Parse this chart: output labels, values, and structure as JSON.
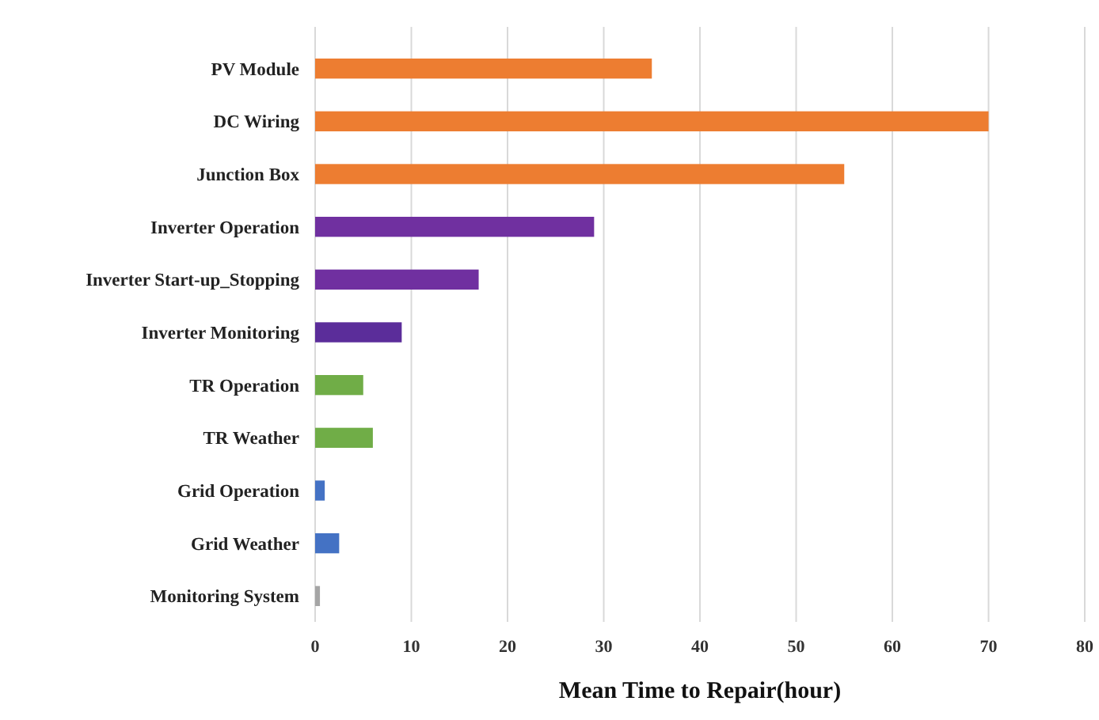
{
  "chart_data": {
    "type": "bar",
    "orientation": "horizontal",
    "xlabel": "Mean Time to Repair(hour)",
    "categories": [
      "PV Module",
      "DC Wiring",
      "Junction Box",
      "Inverter Operation",
      "Inverter Start-up_Stopping",
      "Inverter Monitoring",
      "TR Operation",
      "TR Weather",
      "Grid Operation",
      "Grid Weather",
      "Monitoring System"
    ],
    "values": [
      35,
      70,
      55,
      29,
      17,
      9,
      5,
      6,
      1,
      2.5,
      0.5
    ],
    "colors": [
      "#ed7d31",
      "#ed7d31",
      "#ed7d31",
      "#7030a0",
      "#7030a0",
      "#5b2d9a",
      "#70ad47",
      "#70ad47",
      "#4472c4",
      "#4472c4",
      "#a5a5a5"
    ],
    "xlim": [
      0,
      80
    ],
    "xticks": [
      0,
      10,
      20,
      30,
      40,
      50,
      60,
      70,
      80
    ],
    "grid": "x"
  }
}
